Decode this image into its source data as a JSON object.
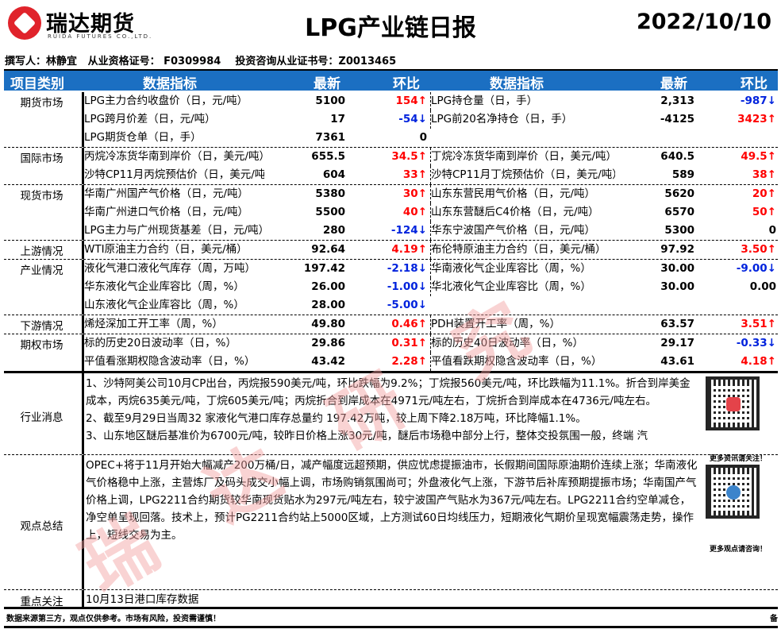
{
  "logo": {
    "cn": "瑞达期货",
    "en": "RUIDA FUTURES CO.,LTD."
  },
  "title": "LPG产业链日报",
  "date": "2022/10/10",
  "author_line": "撰写人：林静宜   从业资格证号： F0309984    投资咨询从业证书号：Z0013465",
  "header": {
    "category": "项目类别",
    "indicator": "数据指标",
    "latest": "最新",
    "change": "环比",
    "indicator2": "数据指标",
    "latest2": "最新",
    "change2": "环比"
  },
  "colors": {
    "header_bg": "#1b6fc2",
    "up": "#ff0000",
    "down": "#0022dd"
  },
  "sections": [
    {
      "category": "期货市场",
      "rows": [
        {
          "n1": "LPG主力合约收盘价（日，元/吨）",
          "v1": "5100",
          "c1": "154↑",
          "d1": "up",
          "n2": "LPG持仓量（日，手）",
          "v2": "2,313",
          "c2": "-987↓",
          "d2": "down"
        },
        {
          "n1": "LPG跨月价差（日，元/吨）",
          "v1": "17",
          "c1": "-54↓",
          "d1": "down",
          "n2": "LPG前20名净持仓（日，手）",
          "v2": "-4125",
          "c2": "3423↑",
          "d2": "up"
        },
        {
          "n1": "LPG期货仓单（日，手）",
          "v1": "7361",
          "c1": "0",
          "d1": "",
          "n2": "",
          "v2": "",
          "c2": "",
          "d2": ""
        }
      ]
    },
    {
      "category": "国际市场",
      "rows": [
        {
          "n1": "丙烷冷冻货华南到岸价（日，美元/吨）",
          "v1": "655.5",
          "c1": "34.5↑",
          "d1": "up",
          "n2": "丁烷冷冻货华南到岸价（日，美元/吨）",
          "v2": "640.5",
          "c2": "49.5↑",
          "d2": "up"
        },
        {
          "n1": "沙特CP11月丙烷预估价（日，美元/吨）",
          "v1": "604",
          "c1": "33↑",
          "d1": "up",
          "n2": "沙特CP11月丁烷预估价（日，美元/吨）",
          "v2": "589",
          "c2": "38↑",
          "d2": "up"
        }
      ]
    },
    {
      "category": "现货市场",
      "rows": [
        {
          "n1": "华南广州国产气价格（日，元/吨）",
          "v1": "5380",
          "c1": "30↑",
          "d1": "up",
          "n2": "山东东营民用气价格（日，元/吨）",
          "v2": "5620",
          "c2": "20↑",
          "d2": "up"
        },
        {
          "n1": "华南广州进口气价格（日，元/吨）",
          "v1": "5500",
          "c1": "40↑",
          "d1": "up",
          "n2": "山东东营醚后C4价格（日，元/吨）",
          "v2": "6570",
          "c2": "50↑",
          "d2": "up"
        },
        {
          "n1": "LPG主力与广州现货基差（日，元/吨）",
          "v1": "280",
          "c1": "-124↓",
          "d1": "down",
          "n2": "华东宁波国产气价格（日，元/吨）",
          "v2": "5300",
          "c2": "0",
          "d2": ""
        }
      ]
    },
    {
      "category": "上游情况",
      "rows": [
        {
          "n1": "WTI原油主力合约（日，美元/桶）",
          "v1": "92.64",
          "c1": "4.19↑",
          "d1": "up",
          "n2": "布伦特原油主力合约（日，美元/桶）",
          "v2": "97.92",
          "c2": "3.50↑",
          "d2": "up"
        }
      ]
    },
    {
      "category": "产业情况",
      "rows": [
        {
          "n1": "液化气港口液化气库存（周，万吨）",
          "v1": "197.42",
          "c1": "-2.18↓",
          "d1": "down",
          "n2": "华南液化气企业库容比（周，%）",
          "v2": "30.00",
          "c2": "-9.00↓",
          "d2": "down"
        },
        {
          "n1": "华东液化气企业库容比（周，%）",
          "v1": "26.00",
          "c1": "-1.00↓",
          "d1": "down",
          "n2": "华北液化气企业库容比（周，%）",
          "v2": "30.00",
          "c2": "0.00",
          "d2": ""
        },
        {
          "n1": "山东液化气企业库容比（周，%）",
          "v1": "28.00",
          "c1": "-5.00↓",
          "d1": "down",
          "n2": "",
          "v2": "",
          "c2": "",
          "d2": ""
        }
      ]
    },
    {
      "category": "下游情况",
      "rows": [
        {
          "n1": "烯烃深加工开工率（周，%）",
          "v1": "49.80",
          "c1": "0.46↑",
          "d1": "up",
          "n2": "PDH装置开工率（周，%）",
          "v2": "63.57",
          "c2": "3.51↑",
          "d2": "up"
        }
      ]
    },
    {
      "category": "期权市场",
      "rows": [
        {
          "n1": "标的历史20日波动率（日，%）",
          "v1": "29.86",
          "c1": "0.31↑",
          "d1": "up",
          "n2": "标的历史40日波动率（日，%）",
          "v2": "29.17",
          "c2": "-0.33↓",
          "d2": "down"
        },
        {
          "n1": "平值看涨期权隐含波动率（日，%）",
          "v1": "43.42",
          "c1": "2.28↑",
          "d1": "up",
          "n2": "平值看跌期权隐含波动率（日，%）",
          "v2": "43.61",
          "c2": "4.18↑",
          "d2": "up"
        }
      ]
    }
  ],
  "news": {
    "category": "行业消息",
    "lines": [
      "1、沙特阿美公司10月CP出台，丙烷报590美元/吨，环比跌幅为9.2%；丁烷报560美元/吨，环比跌幅为11.1%。折合到岸美金成本，丙烷635美元/吨，丁烷605美元/吨；丙烷折合到岸成本在4971元/吨左右，丁烷折合到岸成本在4736元/吨左右。",
      "2、截至9月29日当周32 家液化气港口库存总量约 197.42万吨，较上周下降2.18万吨，环比降幅1.1%。",
      "3、山东地区醚后基准价为6700元/吨，较昨日价格上涨30元/吨，醚后市场稳中部分上行，整体交投氛围一般，终端 汽"
    ]
  },
  "view": {
    "category": "观点总结",
    "text": "OPEC+将于11月开始大幅减产200万桶/日，减产幅度远超预期，供应忧虑提振油市，长假期间国际原油期价连续上涨；华南液化气价格稳中上涨，主营炼厂及码头成交小幅上调，市场购销氛围尚可；外盘液化气上涨，下游节后补库预期提振市场；华南国产气价格上调，LPG2211合约期货较华南现货贴水为297元/吨左右，较宁波国产气贴水为367元/吨左右。LPG2211合约空单减仓，净空单呈现回落。技术上，预计PG2211合约站上5000区域，上方测试60日均线压力，短期液化气期价呈现宽幅震荡走势，操作上，短线交易为主。"
  },
  "focus": {
    "category": "重点关注",
    "text": "10月13日港口库存数据"
  },
  "qr": {
    "label1": "更多资讯请关注！",
    "label2": "更多观点请咨询！"
  },
  "watermark": "瑞达研究",
  "footer": {
    "left": "数据来源第三方，观点仅供参考。市场有风险，投资需谨慎！",
    "right": "备"
  }
}
